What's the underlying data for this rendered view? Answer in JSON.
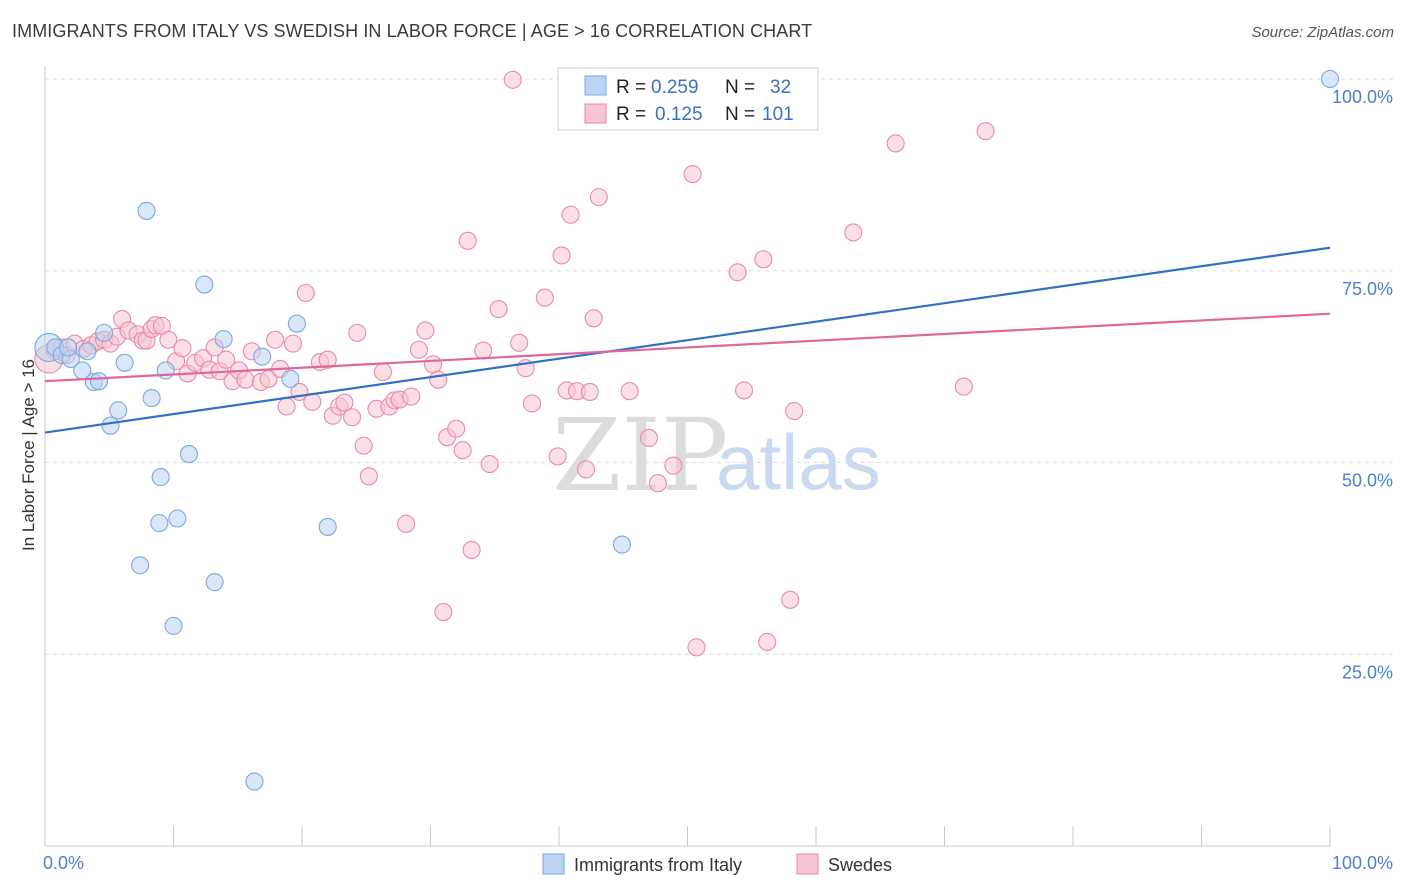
{
  "title": "IMMIGRANTS FROM ITALY VS SWEDISH IN LABOR FORCE | AGE > 16 CORRELATION CHART",
  "source": "Source: ZipAtlas.com",
  "colors": {
    "blue": "#7aa8e0",
    "blue_fill": "#bcd3f3",
    "pink": "#ea8aa8",
    "pink_fill": "#f6c4d3",
    "blue_line": "#3370c9",
    "pink_line": "#e0679a",
    "tick_text": "#4f7fc7"
  },
  "legend": {
    "r_label": "R =",
    "n_label": "N =",
    "rows": [
      {
        "r": "0.259",
        "n": "32"
      },
      {
        "r": "0.125",
        "n": "101"
      }
    ]
  },
  "watermark": {
    "zip": "ZIP",
    "atlas": "atlas"
  },
  "chart_data": {
    "type": "scatter",
    "title": "IMMIGRANTS FROM ITALY VS SWEDISH IN LABOR FORCE | AGE > 16 CORRELATION CHART",
    "xlabel": "",
    "ylabel": "In Labor Force | Age > 16",
    "xlim": [
      0,
      100
    ],
    "ylim": [
      0,
      100
    ],
    "x_tick_labels": [
      "0.0%",
      "100.0%"
    ],
    "y_ticks": [
      25,
      50,
      75,
      100
    ],
    "y_tick_labels": [
      "25.0%",
      "50.0%",
      "75.0%",
      "100.0%"
    ],
    "grid": true,
    "legend_position": "top-center",
    "series": [
      {
        "name": "Immigrants from Italy",
        "color": "#7aa8e0",
        "r": 0.259,
        "n": 32,
        "trend": {
          "x": [
            0,
            100
          ],
          "y": [
            53.9,
            78.0
          ]
        },
        "points": [
          [
            0.3,
            65.0
          ],
          [
            0.8,
            65.0
          ],
          [
            1.3,
            64.0
          ],
          [
            2.0,
            63.5
          ],
          [
            1.8,
            65.0
          ],
          [
            3.3,
            64.5
          ],
          [
            2.9,
            62.0
          ],
          [
            3.8,
            60.5
          ],
          [
            4.2,
            60.6
          ],
          [
            4.6,
            66.9
          ],
          [
            5.1,
            54.8
          ],
          [
            5.7,
            56.8
          ],
          [
            6.2,
            63.0
          ],
          [
            7.4,
            36.6
          ],
          [
            7.9,
            82.8
          ],
          [
            8.3,
            58.4
          ],
          [
            8.9,
            42.1
          ],
          [
            9.0,
            48.1
          ],
          [
            9.4,
            62.0
          ],
          [
            10.0,
            28.7
          ],
          [
            10.3,
            42.7
          ],
          [
            11.2,
            51.1
          ],
          [
            12.4,
            73.2
          ],
          [
            13.2,
            34.4
          ],
          [
            13.9,
            66.1
          ],
          [
            16.3,
            8.4
          ],
          [
            16.9,
            63.8
          ],
          [
            19.1,
            60.9
          ],
          [
            19.6,
            68.1
          ],
          [
            22.0,
            41.6
          ],
          [
            44.9,
            39.3
          ],
          [
            100.0,
            100.0
          ]
        ]
      },
      {
        "name": "Swedes",
        "color": "#ea8aa8",
        "r": 0.125,
        "n": 101,
        "trend": {
          "x": [
            0,
            100
          ],
          "y": [
            60.6,
            69.4
          ]
        },
        "points": [
          [
            0.3,
            63.5
          ],
          [
            0.8,
            64.5
          ],
          [
            1.3,
            65.0
          ],
          [
            1.7,
            64.0
          ],
          [
            2.3,
            65.5
          ],
          [
            3.0,
            64.8
          ],
          [
            3.6,
            65.3
          ],
          [
            4.1,
            65.8
          ],
          [
            4.6,
            66.0
          ],
          [
            5.1,
            65.5
          ],
          [
            5.6,
            66.4
          ],
          [
            6.0,
            68.7
          ],
          [
            6.5,
            67.2
          ],
          [
            7.2,
            66.7
          ],
          [
            7.6,
            65.9
          ],
          [
            7.9,
            65.9
          ],
          [
            8.3,
            67.4
          ],
          [
            8.6,
            67.9
          ],
          [
            9.1,
            67.8
          ],
          [
            9.6,
            66.0
          ],
          [
            10.2,
            63.2
          ],
          [
            10.7,
            64.9
          ],
          [
            11.1,
            61.6
          ],
          [
            11.7,
            63.0
          ],
          [
            12.3,
            63.6
          ],
          [
            12.8,
            62.1
          ],
          [
            13.2,
            65.0
          ],
          [
            13.6,
            61.9
          ],
          [
            14.1,
            63.4
          ],
          [
            14.6,
            60.6
          ],
          [
            15.1,
            62.0
          ],
          [
            15.6,
            60.8
          ],
          [
            16.1,
            64.5
          ],
          [
            16.8,
            60.5
          ],
          [
            17.4,
            60.9
          ],
          [
            17.9,
            66.0
          ],
          [
            18.3,
            62.2
          ],
          [
            18.8,
            57.3
          ],
          [
            19.3,
            65.5
          ],
          [
            19.8,
            59.2
          ],
          [
            20.3,
            72.1
          ],
          [
            20.8,
            57.9
          ],
          [
            21.4,
            63.1
          ],
          [
            22.0,
            63.4
          ],
          [
            22.4,
            56.1
          ],
          [
            22.9,
            57.3
          ],
          [
            23.3,
            57.8
          ],
          [
            23.9,
            55.9
          ],
          [
            24.3,
            66.9
          ],
          [
            24.8,
            52.2
          ],
          [
            25.2,
            48.2
          ],
          [
            25.8,
            57.0
          ],
          [
            26.3,
            61.8
          ],
          [
            26.8,
            57.3
          ],
          [
            27.2,
            58.1
          ],
          [
            27.6,
            58.2
          ],
          [
            28.1,
            42.0
          ],
          [
            28.5,
            58.6
          ],
          [
            29.1,
            64.7
          ],
          [
            29.6,
            67.2
          ],
          [
            30.2,
            62.8
          ],
          [
            30.6,
            60.8
          ],
          [
            31.0,
            30.5
          ],
          [
            31.3,
            53.3
          ],
          [
            32.0,
            54.4
          ],
          [
            32.5,
            51.6
          ],
          [
            32.9,
            78.9
          ],
          [
            33.2,
            38.6
          ],
          [
            34.1,
            64.6
          ],
          [
            34.6,
            49.8
          ],
          [
            35.3,
            70.0
          ],
          [
            36.4,
            99.9
          ],
          [
            36.9,
            65.6
          ],
          [
            37.4,
            62.3
          ],
          [
            37.9,
            57.7
          ],
          [
            38.9,
            71.5
          ],
          [
            39.9,
            50.8
          ],
          [
            40.2,
            77.0
          ],
          [
            40.6,
            59.4
          ],
          [
            40.9,
            82.3
          ],
          [
            41.4,
            59.3
          ],
          [
            42.1,
            49.1
          ],
          [
            42.4,
            59.2
          ],
          [
            42.7,
            68.8
          ],
          [
            43.1,
            84.6
          ],
          [
            45.5,
            59.3
          ],
          [
            47.0,
            53.2
          ],
          [
            47.7,
            47.3
          ],
          [
            48.9,
            49.6
          ],
          [
            50.4,
            87.6
          ],
          [
            50.7,
            25.9
          ],
          [
            53.9,
            74.8
          ],
          [
            54.4,
            59.4
          ],
          [
            55.9,
            76.5
          ],
          [
            56.2,
            26.6
          ],
          [
            58.0,
            32.1
          ],
          [
            58.3,
            56.7
          ],
          [
            62.9,
            80.0
          ],
          [
            66.2,
            91.6
          ],
          [
            71.5,
            59.9
          ],
          [
            73.2,
            93.2
          ]
        ]
      }
    ]
  }
}
